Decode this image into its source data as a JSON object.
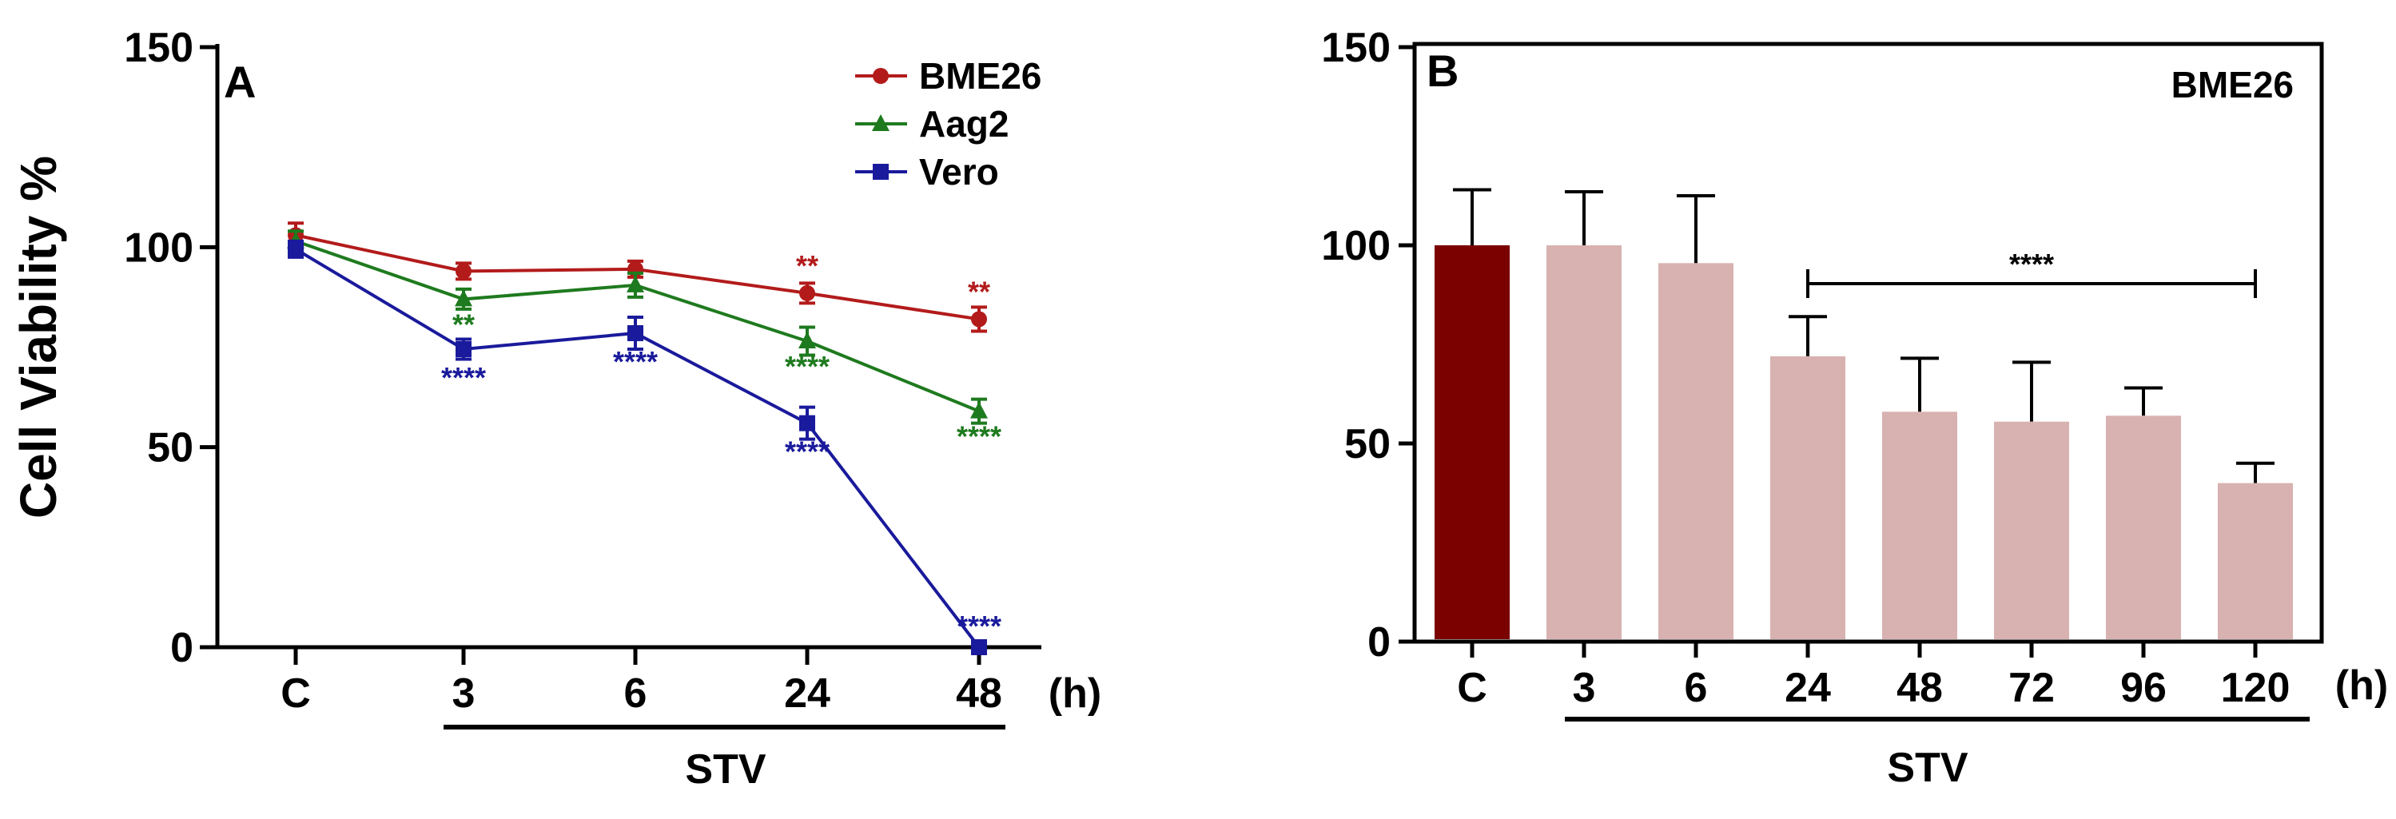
{
  "chart_data": [
    {
      "panel": "A",
      "type": "line",
      "ylabel": "Cell  Viability %",
      "ylim": [
        0,
        150
      ],
      "yticks": [
        "0",
        "50",
        "100",
        "150"
      ],
      "categories": [
        "C",
        "3",
        "6",
        "24",
        "48"
      ],
      "unit": "(h)",
      "group_label": "STV",
      "series": [
        {
          "name": "BME26",
          "color": "#b31b1b",
          "marker": "circle",
          "values": [
            103,
            94,
            94.5,
            88.5,
            82
          ],
          "errors": [
            3,
            2,
            2,
            2.5,
            3
          ],
          "annotations": [
            "",
            "",
            "",
            "**",
            "**"
          ]
        },
        {
          "name": "Aag2",
          "color": "#1e7a1e",
          "marker": "triangle",
          "values": [
            101.5,
            87,
            90.5,
            76.5,
            59
          ],
          "errors": [
            2.5,
            2.5,
            3,
            3.5,
            3
          ],
          "annotations": [
            "",
            "**",
            "",
            "****",
            "****"
          ]
        },
        {
          "name": "Vero",
          "color": "#1a1a9c",
          "marker": "square",
          "values": [
            99.5,
            74.5,
            78.5,
            56,
            0
          ],
          "errors": [
            2,
            2.5,
            4,
            4,
            1
          ],
          "annotations": [
            "",
            "****",
            "****",
            "****",
            "****"
          ]
        }
      ]
    },
    {
      "panel": "B",
      "type": "bar",
      "title": "BME26",
      "ylim": [
        0,
        150
      ],
      "yticks": [
        "0",
        "50",
        "100",
        "150"
      ],
      "categories": [
        "C",
        "3",
        "6",
        "24",
        "48",
        "72",
        "96",
        "120"
      ],
      "unit": "(h)",
      "group_label": "STV",
      "values": [
        100,
        100,
        95.5,
        72,
        58,
        55.5,
        57,
        40
      ],
      "errors": [
        14,
        13.5,
        17,
        10,
        13.5,
        15,
        7,
        5
      ],
      "control_color": "#7b0000",
      "bar_color": "#d8b2b0",
      "significance": {
        "label": "****",
        "from": "24",
        "to": "120"
      }
    }
  ]
}
